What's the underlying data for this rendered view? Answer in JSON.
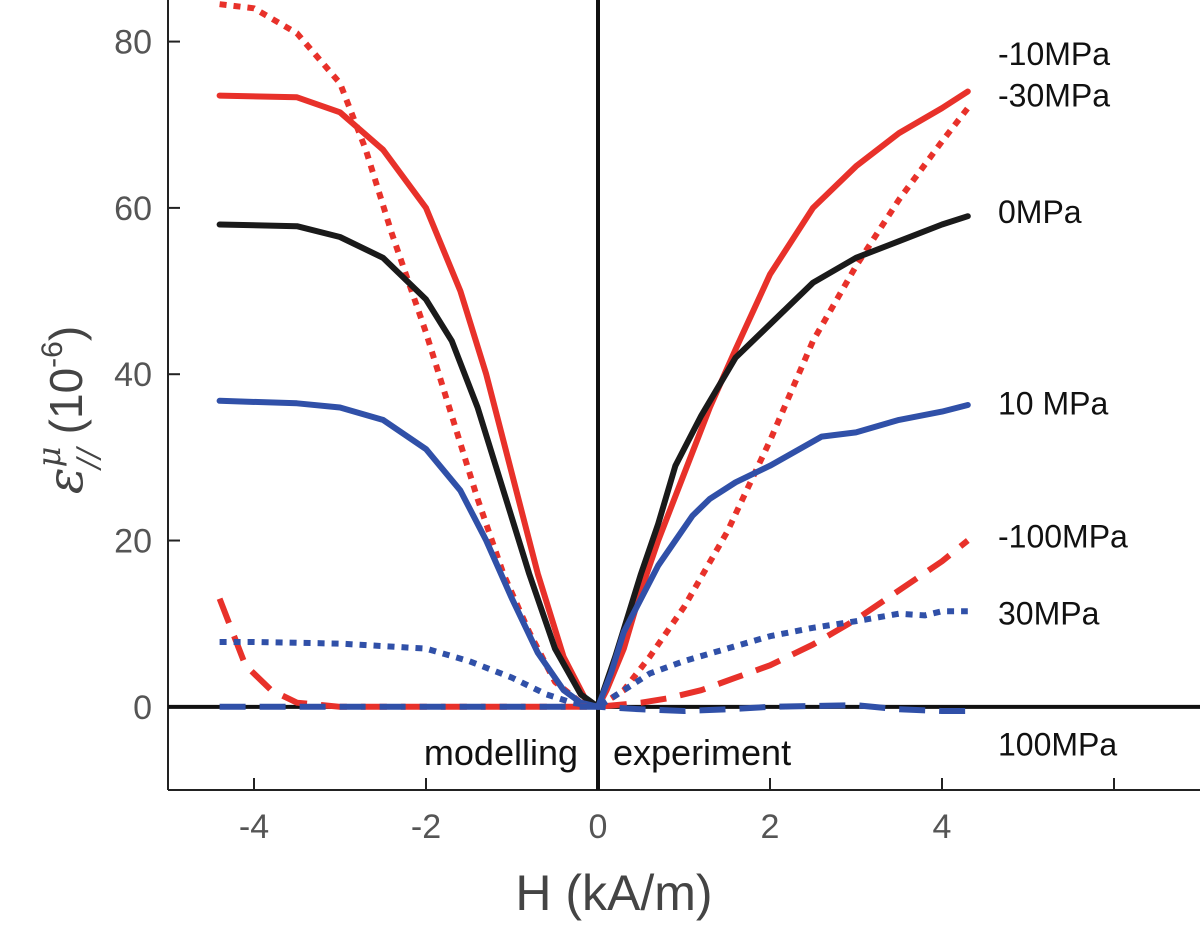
{
  "chart_data": {
    "type": "line",
    "xlabel": "H (kA/m)",
    "ylabel": {
      "symbol": "ε",
      "sup": "μ",
      "sub": "//",
      "unit_open": "(10",
      "unit_exp": "-6",
      "unit_close": ")"
    },
    "xlim": [
      -5,
      7
    ],
    "ylim": [
      -10,
      85
    ],
    "xticks": [
      -4,
      -2,
      0,
      2,
      4
    ],
    "yticks": [
      0,
      20,
      40,
      60,
      80
    ],
    "grid": false,
    "regions": {
      "left": "modelling",
      "right": "experiment"
    },
    "colors": {
      "red": "#e8312a",
      "black": "#1a1a1a",
      "blue": "#3050a8"
    },
    "series": [
      {
        "name": "-10MPa",
        "color": "#e8312a",
        "style": "solid",
        "x": [
          -4.4,
          -3.5,
          -3.0,
          -2.5,
          -2.0,
          -1.6,
          -1.3,
          -1.0,
          -0.7,
          -0.4,
          -0.15,
          0,
          0.1,
          0.3,
          0.5,
          0.7,
          1.0,
          1.3,
          1.6,
          2.0,
          2.5,
          3.0,
          3.5,
          4.0,
          4.3
        ],
        "y": [
          73.5,
          73.3,
          71.5,
          67,
          60,
          50,
          40,
          28,
          16,
          6,
          1,
          0,
          2,
          7,
          14,
          20,
          28,
          36,
          43,
          52,
          60,
          65,
          69,
          72,
          74
        ]
      },
      {
        "name": "-30MPa",
        "color": "#e8312a",
        "style": "dotted",
        "x": [
          -4.4,
          -4.0,
          -3.5,
          -3.0,
          -2.7,
          -2.4,
          -2.0,
          -1.7,
          -1.4,
          -1.1,
          -0.8,
          -0.5,
          -0.2,
          0,
          0.3,
          0.6,
          1.0,
          1.5,
          2.0,
          2.5,
          3.0,
          3.5,
          4.0,
          4.3
        ],
        "y": [
          84.5,
          84,
          81,
          75,
          67,
          57,
          45,
          35,
          25,
          16,
          9,
          3,
          0.5,
          0,
          2,
          6,
          12,
          21,
          32,
          44,
          53,
          61,
          68,
          72
        ]
      },
      {
        "name": "0MPa",
        "color": "#1a1a1a",
        "style": "solid",
        "x": [
          -4.4,
          -3.5,
          -3.0,
          -2.5,
          -2.0,
          -1.7,
          -1.4,
          -1.1,
          -0.8,
          -0.5,
          -0.2,
          0,
          0.1,
          0.2,
          0.35,
          0.5,
          0.7,
          0.9,
          1.2,
          1.6,
          2.0,
          2.5,
          3.0,
          3.5,
          4.0,
          4.3
        ],
        "y": [
          58,
          57.8,
          56.5,
          54,
          49,
          44,
          36,
          26,
          16,
          7,
          1.5,
          0,
          3,
          6,
          11,
          16,
          22,
          29,
          35,
          42,
          46,
          51,
          54,
          56,
          58,
          59
        ]
      },
      {
        "name": "10 MPa",
        "color": "#3050a8",
        "style": "solid",
        "x": [
          -4.4,
          -3.5,
          -3.0,
          -2.5,
          -2.0,
          -1.6,
          -1.3,
          -1.0,
          -0.7,
          -0.4,
          -0.2,
          0,
          0.15,
          0.3,
          0.5,
          0.7,
          0.9,
          1.1,
          1.3,
          1.6,
          2.0,
          2.6,
          3.0,
          3.5,
          4.0,
          4.3
        ],
        "y": [
          36.8,
          36.5,
          36,
          34.5,
          31,
          26,
          20,
          13,
          6.5,
          2,
          0.5,
          0,
          4,
          9,
          13,
          17,
          20,
          23,
          25,
          27,
          29,
          32.5,
          33,
          34.5,
          35.5,
          36.3
        ]
      },
      {
        "name": "-100MPa",
        "color": "#e8312a",
        "style": "dashed",
        "x": [
          -4.4,
          -4.1,
          -3.8,
          -3.5,
          -3.0,
          -2.0,
          -1.0,
          -0.2,
          0,
          0.5,
          0.8,
          1.2,
          1.6,
          2.0,
          2.5,
          3.0,
          3.5,
          4.0,
          4.3
        ],
        "y": [
          13,
          5,
          2,
          0.5,
          0,
          0,
          0,
          0,
          0,
          0.5,
          1,
          2,
          3.5,
          5,
          7.5,
          10.5,
          14,
          17.5,
          20
        ]
      },
      {
        "name": "30MPa",
        "color": "#3050a8",
        "style": "dotted",
        "x": [
          -4.4,
          -4.0,
          -3.0,
          -2.0,
          -1.5,
          -1.0,
          -0.6,
          -0.3,
          0,
          0.3,
          0.6,
          1.0,
          1.5,
          2.0,
          2.5,
          3.0,
          3.5,
          3.8,
          4.0,
          4.3
        ],
        "y": [
          7.8,
          7.8,
          7.6,
          7,
          5.5,
          3.5,
          1.5,
          0.5,
          0,
          2,
          4,
          5.5,
          7,
          8.5,
          9.5,
          10.3,
          11.2,
          11,
          11.5,
          11.5
        ]
      },
      {
        "name": "100MPa",
        "color": "#3050a8",
        "style": "dashed",
        "x": [
          -4.4,
          -3.0,
          -2.0,
          -1.0,
          0,
          0.5,
          1.0,
          1.5,
          2.0,
          3.0,
          3.5,
          4.0,
          4.3
        ],
        "y": [
          0,
          0,
          0,
          0,
          0,
          -0.3,
          -0.5,
          -0.3,
          0,
          0.2,
          -0.3,
          -0.5,
          -0.5
        ]
      }
    ]
  }
}
